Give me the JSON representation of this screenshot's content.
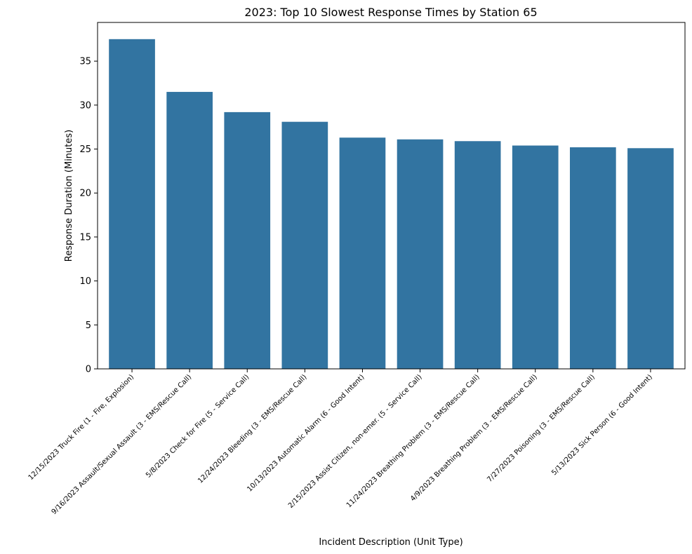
{
  "chart_data": {
    "type": "bar",
    "title": "2023: Top 10 Slowest Response Times by Station 65",
    "xlabel": "Incident Description (Unit Type)",
    "ylabel": "Response Duration (Minutes)",
    "ylim": [
      0,
      39.4
    ],
    "yticks": [
      0,
      5,
      10,
      15,
      20,
      25,
      30,
      35
    ],
    "grid": false,
    "bar_color": "#3274a1",
    "categories": [
      "12/15/2023 Truck Fire (1 - Fire, Explosion)",
      "9/16/2023 Assault/Sexual Assault (3 - EMS/Rescue Call)",
      "5/8/2023 Check for Fire (5 - Service Call)",
      "12/24/2023 Bleeding (3 - EMS/Rescue Call)",
      "10/13/2023 Automatic Alarm (6 - Good Intent)",
      "2/15/2023 Assist Citizen, non-emer. (5 - Service Call)",
      "11/24/2023 Breathing Problem (3 - EMS/Rescue Call)",
      "4/9/2023 Breathing Problem (3 - EMS/Rescue Call)",
      "7/27/2023 Poisoning (3 - EMS/Rescue Call)",
      "5/13/2023 Sick Person (6 - Good Intent)"
    ],
    "values": [
      37.5,
      31.5,
      29.2,
      28.1,
      26.3,
      26.1,
      25.9,
      25.4,
      25.2,
      25.1
    ]
  }
}
